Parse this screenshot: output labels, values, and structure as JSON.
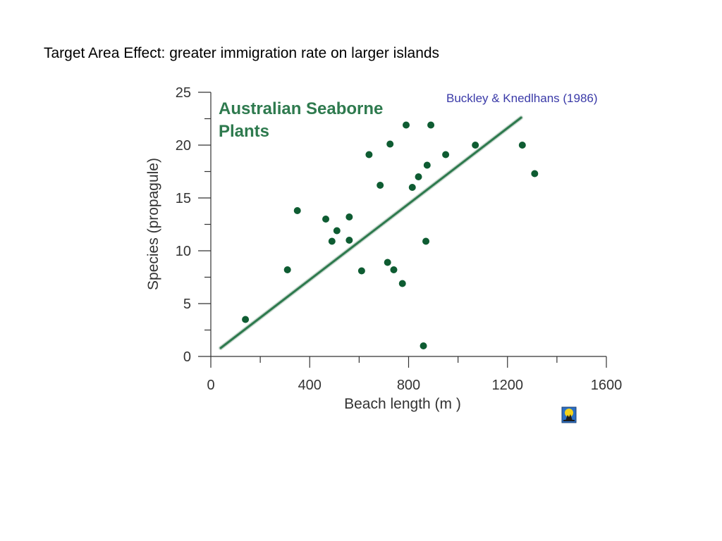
{
  "slide": {
    "title": "Target Area Effect: greater immigration rate on larger islands"
  },
  "chart_data": {
    "type": "scatter",
    "title": "Australian Seaborne",
    "title_line2": "Plants",
    "annotation": "Buckley & Knedlhans (1986)",
    "xlabel": "Beach length (m )",
    "ylabel": "Species (propagule)",
    "xlim": [
      0,
      1600
    ],
    "ylim": [
      0,
      25
    ],
    "x_ticks": [
      0,
      400,
      800,
      1200,
      1600
    ],
    "y_ticks": [
      0,
      5,
      10,
      15,
      20,
      25
    ],
    "grid": false,
    "point_color": "#0e5c32",
    "line_color": "#2e7a4e",
    "points": [
      {
        "x": 140,
        "y": 3.5
      },
      {
        "x": 310,
        "y": 8.2
      },
      {
        "x": 350,
        "y": 13.8
      },
      {
        "x": 465,
        "y": 13.0
      },
      {
        "x": 490,
        "y": 10.9
      },
      {
        "x": 510,
        "y": 11.9
      },
      {
        "x": 560,
        "y": 13.2
      },
      {
        "x": 560,
        "y": 11.0
      },
      {
        "x": 610,
        "y": 8.1
      },
      {
        "x": 640,
        "y": 19.1
      },
      {
        "x": 685,
        "y": 16.2
      },
      {
        "x": 715,
        "y": 8.9
      },
      {
        "x": 725,
        "y": 20.1
      },
      {
        "x": 740,
        "y": 8.2
      },
      {
        "x": 775,
        "y": 6.9
      },
      {
        "x": 790,
        "y": 21.9
      },
      {
        "x": 815,
        "y": 16.0
      },
      {
        "x": 840,
        "y": 17.0
      },
      {
        "x": 860,
        "y": 1.0
      },
      {
        "x": 870,
        "y": 10.9
      },
      {
        "x": 875,
        "y": 18.1
      },
      {
        "x": 890,
        "y": 21.9
      },
      {
        "x": 950,
        "y": 19.1
      },
      {
        "x": 1070,
        "y": 20.0
      },
      {
        "x": 1260,
        "y": 20.0
      },
      {
        "x": 1310,
        "y": 17.3
      }
    ],
    "trendline": {
      "x": [
        40,
        1255
      ],
      "y": [
        0.8,
        22.6
      ]
    }
  },
  "icons": {
    "nav": "home-navigation-icon"
  }
}
